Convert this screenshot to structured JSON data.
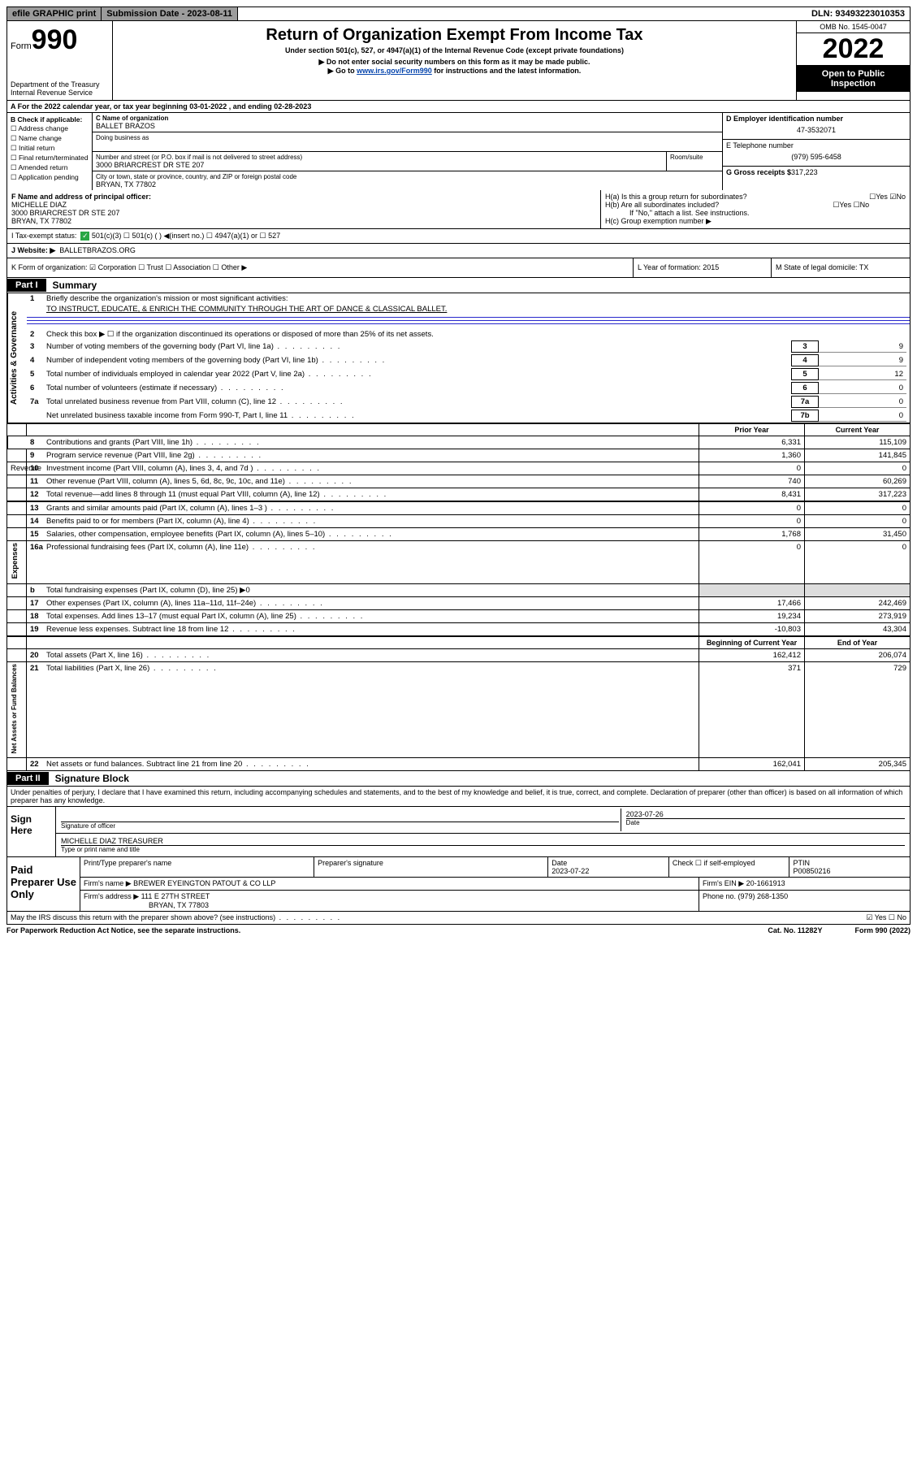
{
  "top_bar": {
    "efile": "efile GRAPHIC print",
    "sub_date_label": "Submission Date - 2023-08-11",
    "dln": "DLN: 93493223010353"
  },
  "header": {
    "form_label": "Form",
    "form_num": "990",
    "dept": "Department of the Treasury",
    "irs": "Internal Revenue Service",
    "title": "Return of Organization Exempt From Income Tax",
    "subtitle": "Under section 501(c), 527, or 4947(a)(1) of the Internal Revenue Code (except private foundations)",
    "note1": "▶ Do not enter social security numbers on this form as it may be made public.",
    "note2_pre": "▶ Go to ",
    "note2_link": "www.irs.gov/Form990",
    "note2_post": " for instructions and the latest information.",
    "omb": "OMB No. 1545-0047",
    "year": "2022",
    "inspect": "Open to Public Inspection"
  },
  "row_a": "A For the 2022 calendar year, or tax year beginning 03-01-2022  , and ending 02-28-2023",
  "col_b": {
    "hdr": "B Check if applicable:",
    "items": [
      "☐ Address change",
      "☐ Name change",
      "☐ Initial return",
      "☐ Final return/terminated",
      "☐ Amended return",
      "☐ Application pending"
    ]
  },
  "col_c": {
    "name_lbl": "C Name of organization",
    "name": "BALLET BRAZOS",
    "dba_lbl": "Doing business as",
    "addr_lbl": "Number and street (or P.O. box if mail is not delivered to street address)",
    "addr": "3000 BRIARCREST DR STE 207",
    "room_lbl": "Room/suite",
    "city_lbl": "City or town, state or province, country, and ZIP or foreign postal code",
    "city": "BRYAN, TX  77802"
  },
  "col_d": {
    "ein_lbl": "D Employer identification number",
    "ein": "47-3532071",
    "tel_lbl": "E Telephone number",
    "tel": "(979) 595-6458",
    "gross_lbl": "G Gross receipts $",
    "gross": "317,223"
  },
  "row_f": {
    "f_lbl": "F Name and address of principal officer:",
    "f_name": "MICHELLE DIAZ",
    "f_addr1": "3000 BRIARCREST DR STE 207",
    "f_addr2": "BRYAN, TX  77802",
    "ha": "H(a)  Is this a group return for subordinates?",
    "ha_ans": "☐Yes ☑No",
    "hb": "H(b)  Are all subordinates included?",
    "hb_ans": "☐Yes ☐No",
    "hb_note": "If \"No,\" attach a list. See instructions.",
    "hc": "H(c)  Group exemption number ▶"
  },
  "row_i": {
    "lbl": "I   Tax-exempt status:",
    "opts": "501(c)(3)   ☐  501(c) (  ) ◀(insert no.)    ☐ 4947(a)(1) or  ☐ 527"
  },
  "row_j": {
    "lbl": "J   Website: ▶",
    "val": "BALLETBRAZOS.ORG"
  },
  "row_k": {
    "k": "K Form of organization:  ☑ Corporation  ☐ Trust  ☐ Association  ☐ Other ▶",
    "l": "L Year of formation: 2015",
    "m": "M State of legal domicile: TX"
  },
  "part1": {
    "tag": "Part I",
    "title": "Summary"
  },
  "gov": {
    "label": "Activities & Governance",
    "l1": "Briefly describe the organization's mission or most significant activities:",
    "l1_val": "TO INSTRUCT, EDUCATE, & ENRICH THE COMMUNITY THROUGH THE ART OF DANCE & CLASSICAL BALLET.",
    "l2": "Check this box ▶ ☐  if the organization discontinued its operations or disposed of more than 25% of its net assets.",
    "l3": "Number of voting members of the governing body (Part VI, line 1a)",
    "l4": "Number of independent voting members of the governing body (Part VI, line 1b)",
    "l5": "Total number of individuals employed in calendar year 2022 (Part V, line 2a)",
    "l6": "Total number of volunteers (estimate if necessary)",
    "l7a": "Total unrelated business revenue from Part VIII, column (C), line 12",
    "l7b": "Net unrelated business taxable income from Form 990-T, Part I, line 11",
    "v3": "9",
    "v4": "9",
    "v5": "12",
    "v6": "0",
    "v7a": "0",
    "v7b": "0"
  },
  "hdr_cols": {
    "prior": "Prior Year",
    "current": "Current Year"
  },
  "rev": {
    "label": "Revenue",
    "lines": [
      {
        "n": "8",
        "t": "Contributions and grants (Part VIII, line 1h)",
        "p": "6,331",
        "c": "115,109"
      },
      {
        "n": "9",
        "t": "Program service revenue (Part VIII, line 2g)",
        "p": "1,360",
        "c": "141,845"
      },
      {
        "n": "10",
        "t": "Investment income (Part VIII, column (A), lines 3, 4, and 7d )",
        "p": "0",
        "c": "0"
      },
      {
        "n": "11",
        "t": "Other revenue (Part VIII, column (A), lines 5, 6d, 8c, 9c, 10c, and 11e)",
        "p": "740",
        "c": "60,269"
      },
      {
        "n": "12",
        "t": "Total revenue—add lines 8 through 11 (must equal Part VIII, column (A), line 12)",
        "p": "8,431",
        "c": "317,223"
      }
    ]
  },
  "exp": {
    "label": "Expenses",
    "lines": [
      {
        "n": "13",
        "t": "Grants and similar amounts paid (Part IX, column (A), lines 1–3 )",
        "p": "0",
        "c": "0"
      },
      {
        "n": "14",
        "t": "Benefits paid to or for members (Part IX, column (A), line 4)",
        "p": "0",
        "c": "0"
      },
      {
        "n": "15",
        "t": "Salaries, other compensation, employee benefits (Part IX, column (A), lines 5–10)",
        "p": "1,768",
        "c": "31,450"
      },
      {
        "n": "16a",
        "t": "Professional fundraising fees (Part IX, column (A), line 11e)",
        "p": "0",
        "c": "0"
      },
      {
        "n": "b",
        "t": "Total fundraising expenses (Part IX, column (D), line 25) ▶0",
        "p": "",
        "c": ""
      },
      {
        "n": "17",
        "t": "Other expenses (Part IX, column (A), lines 11a–11d, 11f–24e)",
        "p": "17,466",
        "c": "242,469"
      },
      {
        "n": "18",
        "t": "Total expenses. Add lines 13–17 (must equal Part IX, column (A), line 25)",
        "p": "19,234",
        "c": "273,919"
      },
      {
        "n": "19",
        "t": "Revenue less expenses. Subtract line 18 from line 12",
        "p": "-10,803",
        "c": "43,304"
      }
    ]
  },
  "net": {
    "label": "Net Assets or Fund Balances",
    "hdr_p": "Beginning of Current Year",
    "hdr_c": "End of Year",
    "lines": [
      {
        "n": "20",
        "t": "Total assets (Part X, line 16)",
        "p": "162,412",
        "c": "206,074"
      },
      {
        "n": "21",
        "t": "Total liabilities (Part X, line 26)",
        "p": "371",
        "c": "729"
      },
      {
        "n": "22",
        "t": "Net assets or fund balances. Subtract line 21 from line 20",
        "p": "162,041",
        "c": "205,345"
      }
    ]
  },
  "part2": {
    "tag": "Part II",
    "title": "Signature Block",
    "decl": "Under penalties of perjury, I declare that I have examined this return, including accompanying schedules and statements, and to the best of my knowledge and belief, it is true, correct, and complete. Declaration of preparer (other than officer) is based on all information of which preparer has any knowledge."
  },
  "sign": {
    "lbl": "Sign Here",
    "sig_lbl": "Signature of officer",
    "date_lbl": "Date",
    "date": "2023-07-26",
    "name": "MICHELLE DIAZ TREASURER",
    "name_lbl": "Type or print name and title"
  },
  "prep": {
    "lbl": "Paid Preparer Use Only",
    "r1": {
      "a": "Print/Type preparer's name",
      "b": "Preparer's signature",
      "c": "Date",
      "cv": "2023-07-22",
      "d": "Check ☐ if self-employed",
      "e": "PTIN",
      "ev": "P00850216"
    },
    "r2": {
      "a": "Firm's name    ▶ BREWER EYEINGTON PATOUT & CO LLP",
      "b": "Firm's EIN ▶ 20-1661913"
    },
    "r3": {
      "a": "Firm's address ▶ 111 E 27TH STREET",
      "b": "Phone no. (979) 268-1350"
    },
    "r3b": "BRYAN, TX  77803"
  },
  "may_irs": "May the IRS discuss this return with the preparer shown above? (see instructions)",
  "may_irs_ans": "☑ Yes  ☐ No",
  "footer": {
    "a": "For Paperwork Reduction Act Notice, see the separate instructions.",
    "b": "Cat. No. 11282Y",
    "c": "Form 990 (2022)"
  }
}
